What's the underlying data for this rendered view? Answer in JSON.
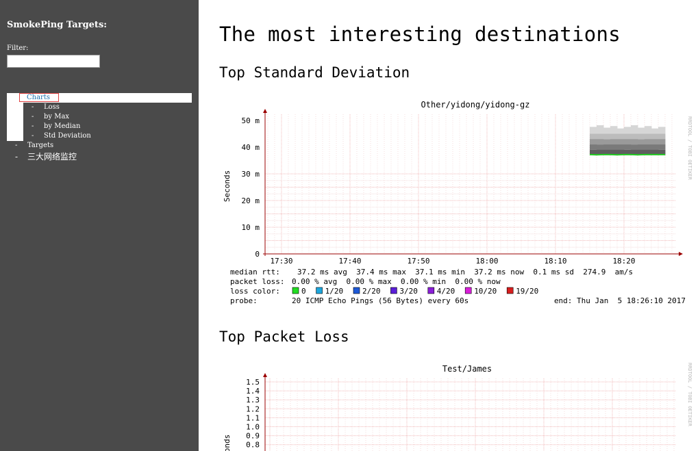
{
  "sidebar": {
    "title": "SmokePing Targets:",
    "filter_label": "Filter:",
    "filter_value": "",
    "tree": {
      "charts": "Charts",
      "charts_children": [
        "Loss",
        "by Max",
        "by Median",
        "Std Deviation"
      ],
      "targets": "Targets",
      "group": "三大网络监控"
    }
  },
  "main": {
    "title": "The most interesting destinations",
    "section1_title": "Top Standard Deviation",
    "section2_title": "Top Packet Loss"
  },
  "chart_data": [
    {
      "type": "line",
      "title": "Other/yidong/yidong-gz",
      "ylabel": "Seconds",
      "y_ticks": [
        "0",
        "10 m",
        "20 m",
        "30 m",
        "40 m",
        "50 m"
      ],
      "ylim": [
        0,
        0.05
      ],
      "x_ticks": [
        "17:30",
        "17:40",
        "17:50",
        "18:00",
        "18:10",
        "18:20"
      ],
      "watermark": "RRDTOOL / TOBI OETIKER",
      "series": [
        {
          "name": "median rtt",
          "x": [
            "18:15",
            "18:16",
            "18:17",
            "18:18",
            "18:19",
            "18:20",
            "18:21",
            "18:22",
            "18:23",
            "18:24",
            "18:25",
            "18:26"
          ],
          "values": [
            0.0372,
            0.0371,
            0.0372,
            0.0372,
            0.0371,
            0.0372,
            0.0372,
            0.0371,
            0.0372,
            0.0372,
            0.0372,
            0.0372
          ]
        }
      ],
      "smoke_range": [
        0.037,
        0.047
      ],
      "colors": {
        "median": "#22cc22",
        "grid": "#f0b8b8",
        "axis": "#9b0000"
      },
      "legend": {
        "median_rtt": {
          "label": "median rtt:",
          "text": "37.2 ms avg  37.4 ms max  37.1 ms min  37.2 ms now  0.1 ms sd  274.9  am/s"
        },
        "packet_loss": {
          "label": "packet loss:",
          "text": "0.00 % avg  0.00 % max  0.00 % min  0.00 % now"
        },
        "loss_color": {
          "label": "loss color:",
          "items": [
            {
              "label": "0",
              "color": "#22dd22"
            },
            {
              "label": "1/20",
              "color": "#1da6dd"
            },
            {
              "label": "2/20",
              "color": "#1e5ad8"
            },
            {
              "label": "3/20",
              "color": "#5a1ed8"
            },
            {
              "label": "4/20",
              "color": "#8a1ed8"
            },
            {
              "label": "10/20",
              "color": "#d81ed8"
            },
            {
              "label": "19/20",
              "color": "#d81e1e"
            }
          ]
        },
        "probe": {
          "label": "probe:",
          "text": "20 ICMP Echo Pings (56 Bytes) every 60s",
          "end": "end: Thu Jan  5 18:26:10 2017"
        }
      }
    },
    {
      "type": "line",
      "title": "Test/James",
      "ylabel": "Seconds",
      "y_ticks": [
        "0.8",
        "0.9",
        "1.0",
        "1.1",
        "1.2",
        "1.3",
        "1.4",
        "1.5"
      ],
      "watermark": "RRDTOOL / TOBI OETIKER"
    }
  ]
}
